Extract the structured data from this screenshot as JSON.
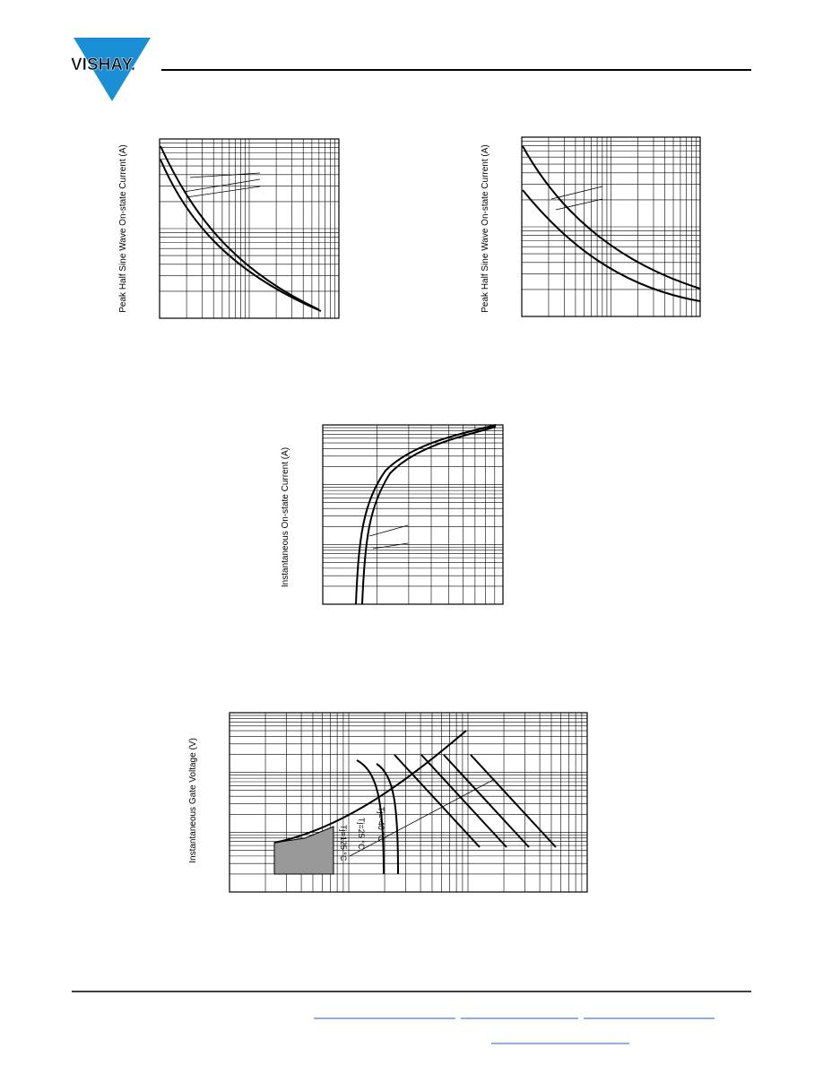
{
  "header": {
    "logo": "VISHAY."
  },
  "charts": [
    {
      "y_label": "Peak Half Sine Wave On-state Current (A)"
    },
    {
      "y_label": "Peak Half Sine Wave On-state Current (A)"
    },
    {
      "y_label": "Instantaneous On-state Current (A)"
    },
    {
      "y_label": "Instantaneous Gate Voltage (V)",
      "annotations": [
        "Tj=-40 °C",
        "Tj=25 °C",
        "Tj=125 °C"
      ]
    }
  ]
}
